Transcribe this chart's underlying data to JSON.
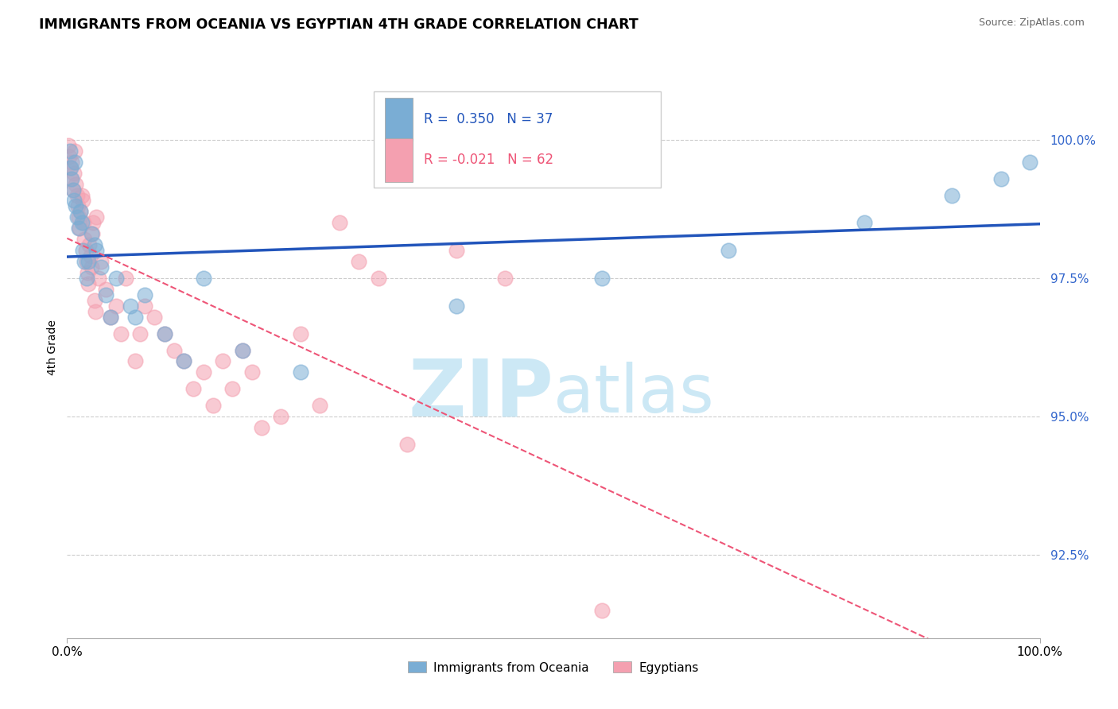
{
  "title": "IMMIGRANTS FROM OCEANIA VS EGYPTIAN 4TH GRADE CORRELATION CHART",
  "source": "Source: ZipAtlas.com",
  "ylabel": "4th Grade",
  "legend_blue_label": "Immigrants from Oceania",
  "legend_pink_label": "Egyptians",
  "R_blue": 0.35,
  "N_blue": 37,
  "R_pink": -0.021,
  "N_pink": 62,
  "blue_color": "#7aadd4",
  "pink_color": "#f4a0b0",
  "trend_blue_color": "#2255bb",
  "trend_pink_color": "#ee5577",
  "ytick_color": "#3366cc",
  "watermark_color": "#cce8f5",
  "ytick_labels": [
    "92.5%",
    "95.0%",
    "97.5%",
    "100.0%"
  ],
  "ytick_values": [
    92.5,
    95.0,
    97.5,
    100.0
  ],
  "ymin": 91.0,
  "ymax": 101.5,
  "xmin": 0.0,
  "xmax": 100.0,
  "blue_scatter_x": [
    0.3,
    0.4,
    0.5,
    0.6,
    0.7,
    0.8,
    0.9,
    1.0,
    1.2,
    1.4,
    1.6,
    1.8,
    2.0,
    2.5,
    3.0,
    3.5,
    4.0,
    4.5,
    5.0,
    6.5,
    8.0,
    10.0,
    14.0,
    18.0,
    24.0,
    40.0,
    55.0,
    68.0,
    82.0,
    91.0,
    96.0,
    99.0,
    2.2,
    2.8,
    1.5,
    7.0,
    12.0
  ],
  "blue_scatter_y": [
    99.8,
    99.5,
    99.3,
    99.1,
    98.9,
    99.6,
    98.8,
    98.6,
    98.4,
    98.7,
    98.0,
    97.8,
    97.5,
    98.3,
    98.0,
    97.7,
    97.2,
    96.8,
    97.5,
    97.0,
    97.2,
    96.5,
    97.5,
    96.2,
    95.8,
    97.0,
    97.5,
    98.0,
    98.5,
    99.0,
    99.3,
    99.6,
    97.8,
    98.1,
    98.5,
    96.8,
    96.0
  ],
  "pink_scatter_x": [
    0.1,
    0.2,
    0.3,
    0.4,
    0.5,
    0.6,
    0.7,
    0.8,
    0.9,
    1.0,
    1.1,
    1.2,
    1.3,
    1.4,
    1.5,
    1.6,
    1.7,
    1.8,
    1.9,
    2.0,
    2.1,
    2.2,
    2.3,
    2.4,
    2.5,
    2.6,
    2.7,
    2.8,
    2.9,
    3.0,
    3.2,
    3.5,
    4.0,
    4.5,
    5.0,
    5.5,
    6.0,
    7.0,
    7.5,
    8.0,
    9.0,
    10.0,
    11.0,
    12.0,
    13.0,
    14.0,
    15.0,
    16.0,
    17.0,
    18.0,
    19.0,
    20.0,
    22.0,
    24.0,
    26.0,
    28.0,
    30.0,
    32.0,
    35.0,
    40.0,
    45.0,
    55.0
  ],
  "pink_scatter_y": [
    99.9,
    99.7,
    99.5,
    99.3,
    99.6,
    99.1,
    99.4,
    99.8,
    99.2,
    99.0,
    98.8,
    98.6,
    98.4,
    98.7,
    99.0,
    98.9,
    98.5,
    98.2,
    98.0,
    97.8,
    97.6,
    97.4,
    98.1,
    97.9,
    97.7,
    98.3,
    98.5,
    97.1,
    96.9,
    98.6,
    97.5,
    97.8,
    97.3,
    96.8,
    97.0,
    96.5,
    97.5,
    96.0,
    96.5,
    97.0,
    96.8,
    96.5,
    96.2,
    96.0,
    95.5,
    95.8,
    95.2,
    96.0,
    95.5,
    96.2,
    95.8,
    94.8,
    95.0,
    96.5,
    95.2,
    98.5,
    97.8,
    97.5,
    94.5,
    98.0,
    97.5,
    91.5
  ]
}
